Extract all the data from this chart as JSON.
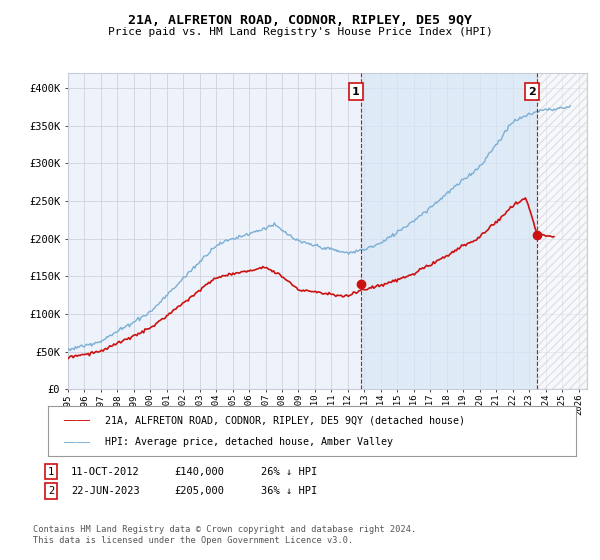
{
  "title": "21A, ALFRETON ROAD, CODNOR, RIPLEY, DE5 9QY",
  "subtitle": "Price paid vs. HM Land Registry's House Price Index (HPI)",
  "ylabel_vals": [
    "£0",
    "£50K",
    "£100K",
    "£150K",
    "£200K",
    "£250K",
    "£300K",
    "£350K",
    "£400K"
  ],
  "yticks": [
    0,
    50000,
    100000,
    150000,
    200000,
    250000,
    300000,
    350000,
    400000
  ],
  "ylim": [
    0,
    420000
  ],
  "xlim_start": 1995.0,
  "xlim_end": 2026.5,
  "hpi_color": "#7bafd4",
  "hpi_fill_color": "#d8e8f5",
  "price_color": "#cc1111",
  "vline_color": "#cc1111",
  "bg_color": "#eef2fa",
  "grid_color": "#c8ccd8",
  "sale1_x": 2012.78,
  "sale1_y": 140000,
  "sale1_label": "1",
  "sale2_x": 2023.47,
  "sale2_y": 205000,
  "sale2_label": "2",
  "legend_line1": "21A, ALFRETON ROAD, CODNOR, RIPLEY, DE5 9QY (detached house)",
  "legend_line2": "HPI: Average price, detached house, Amber Valley",
  "note1_label": "1",
  "note1_date": "11-OCT-2012",
  "note1_price": "£140,000",
  "note1_hpi": "26% ↓ HPI",
  "note2_label": "2",
  "note2_date": "22-JUN-2023",
  "note2_price": "£205,000",
  "note2_hpi": "36% ↓ HPI",
  "footer": "Contains HM Land Registry data © Crown copyright and database right 2024.\nThis data is licensed under the Open Government Licence v3.0."
}
